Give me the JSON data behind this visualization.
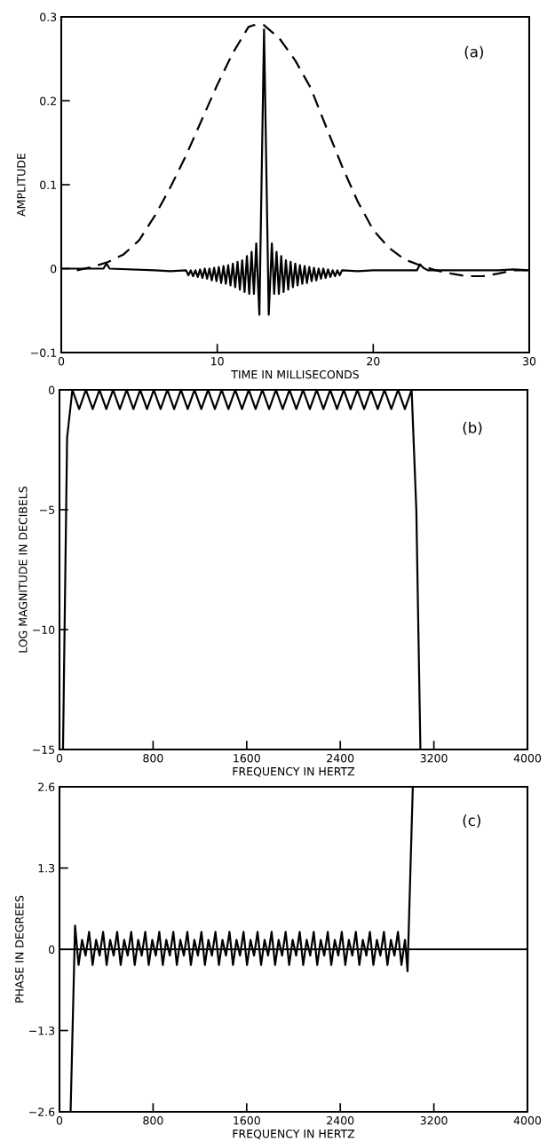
{
  "chart_data": [
    {
      "type": "line",
      "xlabel": "TIME IN MILLISECONDS",
      "ylabel": "AMPLITUDE",
      "annotations": [
        "(a)"
      ],
      "xlim": [
        0,
        30
      ],
      "ylim": [
        -0.1,
        0.3
      ],
      "xticks": [
        0,
        10,
        20,
        30
      ],
      "yticks": [
        -0.1,
        0,
        0.1,
        0.2,
        0.3
      ],
      "marker": "none",
      "series": [
        {
          "color": "#000000",
          "line_style": "dashed",
          "x": [
            1,
            2,
            3,
            4,
            5,
            6,
            7,
            8,
            9,
            10,
            11,
            12,
            12.3,
            13,
            14,
            15,
            16,
            17,
            18,
            19,
            20,
            21,
            22,
            23,
            24,
            25,
            26,
            27,
            28,
            29,
            30
          ],
          "values": [
            -0.002,
            0.002,
            0.008,
            0.017,
            0.034,
            0.063,
            0.097,
            0.135,
            0.177,
            0.219,
            0.257,
            0.288,
            0.29,
            0.29,
            0.274,
            0.248,
            0.215,
            0.168,
            0.122,
            0.08,
            0.046,
            0.025,
            0.011,
            0.004,
            -0.002,
            -0.006,
            -0.009,
            -0.009,
            -0.006,
            -0.002,
            -0.002
          ]
        },
        {
          "color": "#000000",
          "line_style": "solid",
          "x": [
            0,
            2.7,
            2.9,
            3.1,
            6,
            7,
            8.0,
            8.15,
            8.3,
            8.45,
            8.6,
            8.75,
            8.9,
            9.05,
            9.2,
            9.35,
            9.5,
            9.65,
            9.8,
            9.95,
            10.1,
            10.25,
            10.4,
            10.55,
            10.7,
            10.85,
            11.0,
            11.15,
            11.3,
            11.45,
            11.6,
            11.75,
            11.9,
            12.05,
            12.2,
            12.35,
            12.5,
            12.7,
            13.0,
            13.3,
            13.5,
            13.65,
            13.8,
            13.95,
            14.1,
            14.25,
            14.4,
            14.55,
            14.7,
            14.85,
            15.0,
            15.15,
            15.3,
            15.45,
            15.6,
            15.75,
            15.9,
            16.05,
            16.2,
            16.35,
            16.5,
            16.65,
            16.8,
            16.95,
            17.1,
            17.25,
            17.4,
            17.55,
            17.7,
            17.85,
            18.0,
            19,
            20,
            22.8,
            23.0,
            23.2,
            23.5,
            25,
            28,
            29,
            30
          ],
          "values": [
            0,
            0,
            0.006,
            0,
            -0.002,
            -0.003,
            -0.002,
            -0.008,
            -0.002,
            -0.009,
            -0.002,
            -0.01,
            -0.001,
            -0.011,
            0,
            -0.012,
            0,
            -0.014,
            0.001,
            -0.015,
            0.002,
            -0.017,
            0.003,
            -0.018,
            0.004,
            -0.02,
            0.006,
            -0.022,
            0.008,
            -0.025,
            0.01,
            -0.028,
            0.015,
            -0.03,
            0.02,
            -0.03,
            0.03,
            -0.055,
            0.285,
            -0.055,
            0.03,
            -0.03,
            0.02,
            -0.03,
            0.015,
            -0.028,
            0.01,
            -0.025,
            0.008,
            -0.022,
            0.006,
            -0.02,
            0.004,
            -0.018,
            0.003,
            -0.017,
            0.002,
            -0.015,
            0.001,
            -0.014,
            0,
            -0.012,
            0,
            -0.011,
            -0.001,
            -0.01,
            -0.002,
            -0.009,
            -0.002,
            -0.008,
            -0.002,
            -0.003,
            -0.002,
            -0.002,
            0.005,
            0.001,
            -0.002,
            -0.002,
            -0.002,
            -0.001,
            -0.002
          ]
        }
      ]
    },
    {
      "type": "line",
      "xlabel": "FREQUENCY IN HERTZ",
      "ylabel": "LOG MAGNITUDE IN DECIBELS",
      "annotations": [
        "(b)"
      ],
      "xlim": [
        0,
        4000
      ],
      "ylim": [
        -15,
        0
      ],
      "xticks": [
        0,
        800,
        1600,
        2400,
        3200,
        4000
      ],
      "yticks": [
        -15,
        -10,
        -5,
        0
      ],
      "marker": "none",
      "series": [
        {
          "color": "#000000",
          "line_style": "solid",
          "x": [
            30,
            65,
            110,
            168,
            226,
            284,
            342,
            400,
            458,
            516,
            574,
            632,
            690,
            748,
            806,
            864,
            922,
            980,
            1038,
            1096,
            1154,
            1212,
            1270,
            1328,
            1386,
            1444,
            1502,
            1560,
            1618,
            1676,
            1734,
            1792,
            1850,
            1908,
            1966,
            2024,
            2082,
            2140,
            2198,
            2256,
            2314,
            2372,
            2430,
            2488,
            2546,
            2604,
            2662,
            2720,
            2778,
            2836,
            2894,
            2952,
            3010,
            3050,
            3085
          ],
          "values": [
            -15,
            -2,
            0,
            -0.8,
            0,
            -0.8,
            0,
            -0.8,
            0,
            -0.8,
            0,
            -0.8,
            0,
            -0.8,
            0,
            -0.8,
            0,
            -0.8,
            0,
            -0.8,
            0,
            -0.8,
            0,
            -0.8,
            0,
            -0.8,
            0,
            -0.8,
            0,
            -0.8,
            0,
            -0.8,
            0,
            -0.8,
            0,
            -0.8,
            0,
            -0.8,
            0,
            -0.8,
            0,
            -0.8,
            0,
            -0.8,
            0,
            -0.8,
            0,
            -0.8,
            0,
            -0.8,
            0,
            -0.8,
            0,
            -5,
            -15
          ]
        }
      ]
    },
    {
      "type": "line",
      "xlabel": "FREQUENCY IN HERTZ",
      "ylabel": "PHASE IN DEGREES",
      "annotations": [
        "(c)"
      ],
      "xlim": [
        0,
        4000
      ],
      "ylim": [
        -2.6,
        2.6
      ],
      "xticks": [
        0,
        800,
        1600,
        2400,
        3200,
        4000
      ],
      "yticks": [
        -2.6,
        -1.3,
        0,
        1.3,
        2.6
      ],
      "marker": "none",
      "series": [
        {
          "color": "#000000",
          "line_style": "solid",
          "x": [
            0,
            4000
          ],
          "values": [
            0,
            0
          ]
        },
        {
          "color": "#000000",
          "line_style": "solid",
          "x": [
            95,
            133,
            163,
            193,
            223,
            253,
            283,
            313,
            343,
            373,
            403,
            433,
            463,
            493,
            523,
            553,
            583,
            613,
            643,
            673,
            703,
            733,
            763,
            793,
            823,
            853,
            883,
            913,
            943,
            973,
            1003,
            1033,
            1063,
            1093,
            1123,
            1153,
            1183,
            1213,
            1243,
            1273,
            1303,
            1333,
            1363,
            1393,
            1423,
            1453,
            1483,
            1513,
            1543,
            1573,
            1603,
            1633,
            1663,
            1693,
            1723,
            1753,
            1783,
            1813,
            1843,
            1873,
            1903,
            1933,
            1963,
            1993,
            2023,
            2053,
            2083,
            2113,
            2143,
            2173,
            2203,
            2233,
            2263,
            2293,
            2323,
            2353,
            2383,
            2413,
            2443,
            2473,
            2503,
            2533,
            2563,
            2593,
            2623,
            2653,
            2683,
            2713,
            2743,
            2773,
            2803,
            2833,
            2863,
            2893,
            2923,
            2953,
            2975,
            3020
          ],
          "values": [
            -2.6,
            0.38,
            -0.25,
            0.15,
            -0.1,
            0.28,
            -0.25,
            0.15,
            -0.1,
            0.28,
            -0.25,
            0.15,
            -0.1,
            0.28,
            -0.25,
            0.15,
            -0.1,
            0.28,
            -0.25,
            0.15,
            -0.1,
            0.28,
            -0.25,
            0.15,
            -0.1,
            0.28,
            -0.25,
            0.15,
            -0.1,
            0.28,
            -0.25,
            0.15,
            -0.1,
            0.28,
            -0.25,
            0.15,
            -0.1,
            0.28,
            -0.25,
            0.15,
            -0.1,
            0.28,
            -0.25,
            0.15,
            -0.1,
            0.28,
            -0.25,
            0.15,
            -0.1,
            0.28,
            -0.25,
            0.15,
            -0.1,
            0.28,
            -0.25,
            0.15,
            -0.1,
            0.28,
            -0.25,
            0.15,
            -0.1,
            0.28,
            -0.25,
            0.15,
            -0.1,
            0.28,
            -0.25,
            0.15,
            -0.1,
            0.28,
            -0.25,
            0.15,
            -0.1,
            0.28,
            -0.25,
            0.15,
            -0.1,
            0.28,
            -0.25,
            0.15,
            -0.1,
            0.28,
            -0.25,
            0.15,
            -0.1,
            0.28,
            -0.25,
            0.15,
            -0.1,
            0.28,
            -0.25,
            0.15,
            -0.1,
            0.28,
            -0.25,
            0.15,
            -0.35,
            2.6
          ]
        }
      ]
    }
  ]
}
